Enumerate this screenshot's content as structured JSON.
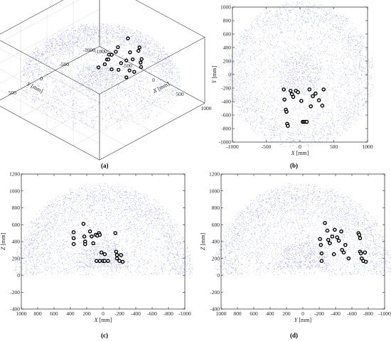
{
  "figure": {
    "panel_labels": [
      "(a)",
      "(b)",
      "(c)",
      "(d)"
    ]
  },
  "colors": {
    "cloud": "#3b3bd6",
    "markers": "#000000",
    "axes": "#000000"
  },
  "chart_data": [
    {
      "type": "scatter",
      "view": "3d",
      "panel": "(a)",
      "axis_labels": {
        "x": "X [mm]",
        "y": "Y [mm]",
        "z": "Z [mm]"
      },
      "ticks": {
        "x": [
          "-1000",
          "-500",
          "0",
          "500",
          "1000"
        ],
        "y": [
          "-1000",
          "-500",
          "0",
          "500",
          "1000"
        ],
        "z": [
          "0",
          "500",
          "1000"
        ]
      },
      "xlim": [
        -1000,
        1000
      ],
      "ylim": [
        -1000,
        1000
      ],
      "zlim": [
        -400,
        1200
      ],
      "grid": true,
      "series": [
        {
          "role": "point-cloud",
          "shape": "hemisphere",
          "radius": 1100,
          "center": [
            0,
            0,
            0
          ],
          "marker": "dot"
        },
        {
          "role": "markers",
          "marker": "circle"
        }
      ]
    },
    {
      "type": "scatter",
      "view": "top",
      "panel": "(b)",
      "xlabel": "X [mm]",
      "ylabel": "Y [mm]",
      "xlim": [
        -1000,
        1000
      ],
      "ylim": [
        -1000,
        1000
      ],
      "xticks": [
        -1000,
        -500,
        0,
        500,
        1000
      ],
      "yticks": [
        -1000,
        -800,
        -600,
        -400,
        -200,
        0,
        200,
        400,
        600,
        800,
        1000
      ],
      "markers": [
        [
          -240,
          -220
        ],
        [
          -230,
          -370
        ],
        [
          -210,
          -520
        ],
        [
          -200,
          -550
        ],
        [
          -190,
          -730
        ],
        [
          -180,
          -760
        ],
        [
          -140,
          -240
        ],
        [
          -120,
          -290
        ],
        [
          -100,
          -330
        ],
        [
          -60,
          -240
        ],
        [
          -30,
          -260
        ],
        [
          20,
          -390
        ],
        [
          40,
          -700
        ],
        [
          60,
          -700
        ],
        [
          80,
          -700
        ],
        [
          100,
          -700
        ],
        [
          140,
          -220
        ],
        [
          160,
          -470
        ],
        [
          190,
          -320
        ],
        [
          230,
          -280
        ],
        [
          280,
          -380
        ],
        [
          330,
          -460
        ],
        [
          350,
          -220
        ]
      ]
    },
    {
      "type": "scatter",
      "view": "front",
      "panel": "(c)",
      "xlabel": "X [mm]",
      "ylabel": "Z [mm]",
      "xlim": [
        1000,
        -1000
      ],
      "ylim": [
        -400,
        1200
      ],
      "xticks": [
        1000,
        800,
        600,
        400,
        200,
        0,
        -200,
        -400,
        -600,
        -800,
        -1000
      ],
      "yticks": [
        -400,
        -200,
        0,
        200,
        400,
        600,
        800,
        1000,
        1200
      ],
      "markers": [
        [
          360,
          510
        ],
        [
          360,
          440
        ],
        [
          360,
          370
        ],
        [
          240,
          610
        ],
        [
          230,
          460
        ],
        [
          220,
          400
        ],
        [
          220,
          370
        ],
        [
          160,
          520
        ],
        [
          140,
          460
        ],
        [
          120,
          380
        ],
        [
          90,
          480
        ],
        [
          70,
          470
        ],
        [
          50,
          500
        ],
        [
          40,
          480
        ],
        [
          20,
          270
        ],
        [
          -20,
          250
        ],
        [
          0,
          170
        ],
        [
          -20,
          170
        ],
        [
          40,
          170
        ],
        [
          -60,
          170
        ],
        [
          80,
          170
        ],
        [
          -150,
          500
        ],
        [
          -160,
          280
        ],
        [
          -170,
          240
        ],
        [
          -170,
          200
        ],
        [
          -200,
          170
        ],
        [
          -220,
          240
        ],
        [
          -240,
          160
        ]
      ]
    },
    {
      "type": "scatter",
      "view": "side",
      "panel": "(d)",
      "xlabel": "Y [mm]",
      "ylabel": "Z [mm]",
      "xlim": [
        1000,
        -1000
      ],
      "ylim": [
        -400,
        1200
      ],
      "xticks": [
        1000,
        800,
        600,
        400,
        200,
        0,
        -200,
        -400,
        -600,
        -800,
        -1000
      ],
      "yticks": [
        -400,
        -200,
        0,
        200,
        400,
        600,
        800,
        1000,
        1200
      ],
      "markers": [
        [
          -210,
          430
        ],
        [
          -220,
          360
        ],
        [
          -230,
          260
        ],
        [
          -230,
          170
        ],
        [
          -270,
          620
        ],
        [
          -300,
          530
        ],
        [
          -310,
          420
        ],
        [
          -330,
          380
        ],
        [
          -360,
          460
        ],
        [
          -380,
          250
        ],
        [
          -390,
          540
        ],
        [
          -420,
          450
        ],
        [
          -440,
          410
        ],
        [
          -470,
          520
        ],
        [
          -480,
          300
        ],
        [
          -500,
          270
        ],
        [
          -520,
          360
        ],
        [
          -560,
          200
        ],
        [
          -680,
          500
        ],
        [
          -690,
          480
        ],
        [
          -700,
          440
        ],
        [
          -700,
          280
        ],
        [
          -710,
          260
        ],
        [
          -720,
          200
        ],
        [
          -740,
          170
        ],
        [
          -760,
          270
        ],
        [
          -770,
          160
        ]
      ]
    }
  ]
}
